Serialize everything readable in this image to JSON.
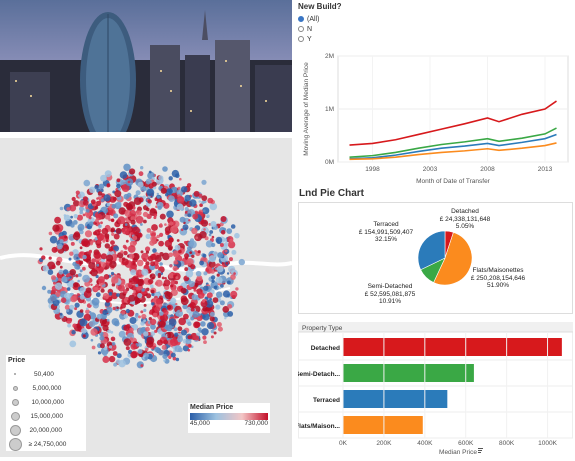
{
  "filter": {
    "title": "New Build?",
    "options": [
      {
        "label": "(All)",
        "selected": true
      },
      {
        "label": "N",
        "selected": false
      },
      {
        "label": "Y",
        "selected": false
      }
    ]
  },
  "line_chart": {
    "ylabel": "Moving Average of Median Price",
    "xlabel": "Month of Date of Transfer",
    "y_ticks": [
      "2M",
      "1M",
      "0M"
    ],
    "x_ticks": [
      "1998",
      "2003",
      "2008",
      "2013"
    ]
  },
  "pie_title": "Lnd Pie Chart",
  "pie_labels": {
    "detached": [
      "Detached",
      "£ 24,338,131,648",
      "5.05%"
    ],
    "terraced": [
      "Terraced",
      "£ 154,991,509,407",
      "32.15%"
    ],
    "semi": [
      "Semi-Detached",
      "£ 52,595,081,875",
      "10.91%"
    ],
    "flats": [
      "Flats/Maisonettes",
      "£ 250,208,154,646",
      "51.90%"
    ]
  },
  "bar_chart": {
    "header": "Property Type",
    "xlabel": "Median Price",
    "x_ticks": [
      "0K",
      "200K",
      "400K",
      "600K",
      "800K",
      "1000K"
    ]
  },
  "price_legend": {
    "title": "Price",
    "items": [
      "50,400",
      "5,000,000",
      "10,000,000",
      "15,000,000",
      "20,000,000",
      "≥ 24,750,000"
    ]
  },
  "median_legend": {
    "title": "Median Price",
    "min": "45,000",
    "max": "730,000"
  },
  "colors": {
    "red": "#d7191c",
    "green": "#3aa845",
    "blue": "#2b7bba",
    "orange": "#fb8b1e"
  },
  "chart_data": [
    {
      "type": "line",
      "x": [
        1996,
        1998,
        2000,
        2002,
        2004,
        2006,
        2008,
        2009,
        2011,
        2013,
        2014
      ],
      "series": [
        {
          "values": [
            320000,
            350000,
            420000,
            520000,
            620000,
            720000,
            830000,
            760000,
            900000,
            1000000,
            1150000
          ],
          "color": "#d7191c"
        },
        {
          "values": [
            90000,
            120000,
            180000,
            260000,
            330000,
            380000,
            440000,
            390000,
            450000,
            530000,
            640000
          ],
          "color": "#3aa845"
        },
        {
          "values": [
            60000,
            80000,
            130000,
            200000,
            260000,
            300000,
            350000,
            310000,
            370000,
            440000,
            520000
          ],
          "color": "#2b7bba"
        },
        {
          "values": [
            50000,
            60000,
            90000,
            140000,
            180000,
            210000,
            250000,
            220000,
            260000,
            310000,
            360000
          ],
          "color": "#fb8b1e"
        }
      ],
      "xlabel": "Month of Date of Transfer",
      "ylabel": "Moving Average of Median Price",
      "ylim": [
        0,
        2000000
      ]
    },
    {
      "type": "pie",
      "title": "Lnd Pie Chart",
      "categories": [
        "Detached",
        "Terraced",
        "Semi-Detached",
        "Flats/Maisonettes"
      ],
      "values": [
        5.05,
        32.15,
        10.91,
        51.9
      ],
      "colors": [
        "#d7191c",
        "#2b7bba",
        "#3aa845",
        "#fb8b1e"
      ]
    },
    {
      "type": "bar",
      "categories": [
        "Detached",
        "Semi-Detach...",
        "Terraced",
        "Flats/Maison..."
      ],
      "values": [
        1070000,
        640000,
        510000,
        390000
      ],
      "colors": [
        "#d7191c",
        "#3aa845",
        "#2b7bba",
        "#fb8b1e"
      ],
      "xlabel": "Median Price",
      "xlim": [
        0,
        1100000
      ]
    }
  ]
}
